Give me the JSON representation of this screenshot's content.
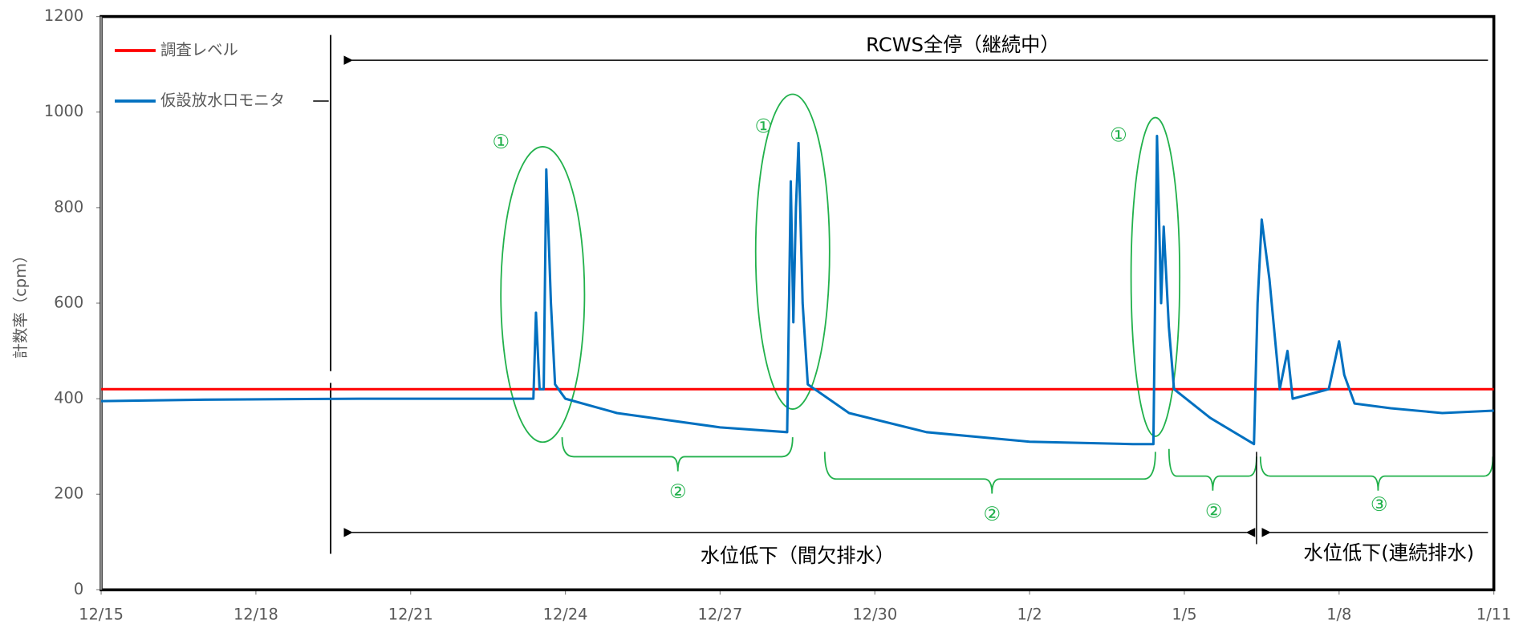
{
  "chart_data": {
    "type": "line",
    "y_label": "計数率（cpm）",
    "xlim": [
      0,
      27
    ],
    "xticks": [
      {
        "value": 0,
        "label": "12/15"
      },
      {
        "value": 3,
        "label": "12/18"
      },
      {
        "value": 6,
        "label": "12/21"
      },
      {
        "value": 9,
        "label": "12/24"
      },
      {
        "value": 12,
        "label": "12/27"
      },
      {
        "value": 15,
        "label": "12/30"
      },
      {
        "value": 18,
        "label": "1/2"
      },
      {
        "value": 21,
        "label": "1/5"
      },
      {
        "value": 24,
        "label": "1/8"
      },
      {
        "value": 27,
        "label": "1/11"
      }
    ],
    "ylim": [
      0,
      1200
    ],
    "yticks": [
      0,
      200,
      400,
      600,
      800,
      1000,
      1200
    ],
    "legend": "upper left",
    "series": [
      {
        "name": "調査レベル",
        "color": "#ff0000",
        "x": [
          0,
          27
        ],
        "values": [
          420,
          420
        ]
      },
      {
        "name": "仮設放水口モニタ",
        "color": "#0070c0",
        "x": [
          0,
          2,
          5,
          8,
          8.38,
          8.43,
          8.5,
          8.58,
          8.63,
          8.72,
          8.8,
          9,
          10,
          12,
          13.3,
          13.37,
          13.42,
          13.47,
          13.52,
          13.6,
          13.7,
          14.5,
          16,
          18,
          20,
          20.4,
          20.47,
          20.55,
          20.6,
          20.7,
          20.8,
          21.5,
          22.35,
          22.42,
          22.5,
          22.65,
          22.85,
          23,
          23.1,
          23.8,
          24,
          24.1,
          24.3,
          25,
          26,
          27
        ],
        "values": [
          395,
          398,
          400,
          400,
          400,
          580,
          420,
          420,
          880,
          600,
          430,
          400,
          370,
          340,
          330,
          855,
          560,
          800,
          935,
          600,
          430,
          370,
          330,
          310,
          305,
          305,
          950,
          600,
          760,
          550,
          420,
          360,
          305,
          600,
          775,
          650,
          420,
          500,
          400,
          420,
          520,
          450,
          390,
          380,
          370,
          375
        ]
      }
    ],
    "annotations": [
      "RCWS全停（継続中）",
      "水位低下（間欠排水）",
      "水位低下(連続排水)",
      "①",
      "①",
      "①",
      "②",
      "②",
      "②",
      "③"
    ]
  }
}
